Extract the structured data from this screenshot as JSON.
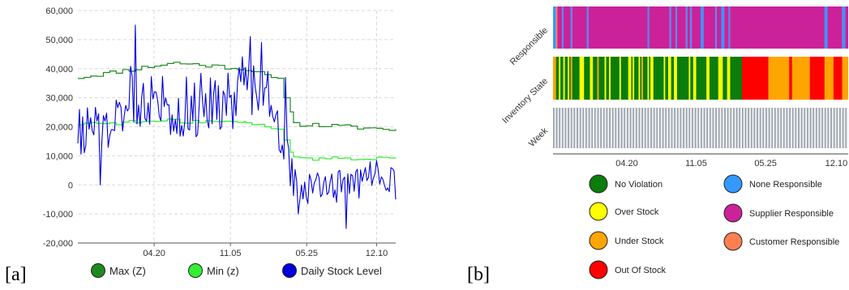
{
  "panel_labels": {
    "a": "[a]",
    "b": "[b]"
  },
  "chart_data": [
    {
      "type": "line",
      "title": "",
      "xlabel": "",
      "ylabel": "",
      "ylim": [
        -20000,
        60000
      ],
      "y_ticks": [
        "60,000",
        "50,000",
        "40,000",
        "30,000",
        "20,000",
        "10,000",
        "0",
        "-10,000",
        "-20,000"
      ],
      "x_ticks": [
        "04.20",
        "11.05",
        "05.25",
        "12.10"
      ],
      "grid": true,
      "legend_position": "bottom",
      "n_points": 200,
      "series": [
        {
          "name": "Max (Z)",
          "color": "#1e8a1e",
          "step": true,
          "segments": [
            {
              "from": 0,
              "to": 60,
              "start": 37000,
              "end": 42000
            },
            {
              "from": 60,
              "to": 105,
              "start": 42000,
              "end": 40000
            },
            {
              "from": 105,
              "to": 125,
              "start": 40000,
              "end": 36000
            },
            {
              "from": 125,
              "to": 135,
              "start": 36000,
              "end": 24000
            },
            {
              "from": 135,
              "to": 200,
              "start": 21000,
              "end": 19000
            }
          ]
        },
        {
          "name": "Min (z)",
          "color": "#33ee33",
          "step": true,
          "segments": [
            {
              "from": 0,
              "to": 60,
              "start": 21000,
              "end": 22000
            },
            {
              "from": 60,
              "to": 105,
              "start": 22000,
              "end": 21500
            },
            {
              "from": 105,
              "to": 125,
              "start": 21500,
              "end": 19000
            },
            {
              "from": 125,
              "to": 135,
              "start": 19000,
              "end": 11000
            },
            {
              "from": 135,
              "to": 200,
              "start": 9000,
              "end": 9500
            }
          ]
        },
        {
          "name": "Daily Stock Level",
          "color": "#0000dd",
          "peaks": [
            {
              "at": 36,
              "value": 55000
            },
            {
              "at": 108,
              "value": 51000
            },
            {
              "at": 115,
              "value": 49000
            },
            {
              "at": 130,
              "value": 37000
            }
          ],
          "troughs": [
            {
              "at": 14,
              "value": 0
            },
            {
              "at": 138,
              "value": -10000
            },
            {
              "at": 168,
              "value": -15000
            },
            {
              "at": 200,
              "value": -5000
            }
          ],
          "segments": [
            {
              "from": 0,
              "to": 30,
              "start": 18000,
              "end": 22000,
              "noise": 8000
            },
            {
              "from": 30,
              "to": 60,
              "start": 32000,
              "end": 28000,
              "noise": 11000
            },
            {
              "from": 60,
              "to": 100,
              "start": 26000,
              "end": 30000,
              "noise": 11000
            },
            {
              "from": 100,
              "to": 125,
              "start": 36000,
              "end": 30000,
              "noise": 10000
            },
            {
              "from": 125,
              "to": 140,
              "start": 20000,
              "end": -4000,
              "noise": 7000
            },
            {
              "from": 140,
              "to": 180,
              "start": -2000,
              "end": 1000,
              "noise": 6000
            },
            {
              "from": 180,
              "to": 200,
              "start": 5000,
              "end": 2000,
              "noise": 5000
            }
          ]
        }
      ],
      "legend": [
        {
          "label": "Max (Z)",
          "color": "#1e8a1e"
        },
        {
          "label": "Min (z)",
          "color": "#33ee33"
        },
        {
          "label": "Daily Stock Level",
          "color": "#0000dd"
        }
      ]
    },
    {
      "type": "heatmap",
      "title": "",
      "rows": [
        "Responsible",
        "Inventory State",
        "Week"
      ],
      "x_ticks": [
        "04.20",
        "11.05",
        "05.25",
        "12.10"
      ],
      "n_columns": 200,
      "row_data": {
        "Responsible": {
          "default": "Supplier Responsible",
          "runs": [
            {
              "from": 0,
              "to": 2,
              "state": "None Responsible"
            },
            {
              "from": 2,
              "to": 3,
              "state": "Customer Responsible"
            },
            {
              "from": 6,
              "to": 7,
              "state": "None Responsible"
            },
            {
              "from": 12,
              "to": 13,
              "state": "None Responsible"
            },
            {
              "from": 23,
              "to": 24,
              "state": "None Responsible"
            },
            {
              "from": 64,
              "to": 65,
              "state": "None Responsible"
            },
            {
              "from": 79,
              "to": 80,
              "state": "None Responsible"
            },
            {
              "from": 83,
              "to": 84,
              "state": "None Responsible"
            },
            {
              "from": 90,
              "to": 91,
              "state": "None Responsible"
            },
            {
              "from": 93,
              "to": 94,
              "state": "None Responsible"
            },
            {
              "from": 100,
              "to": 102,
              "state": "None Responsible"
            },
            {
              "from": 110,
              "to": 111,
              "state": "None Responsible"
            },
            {
              "from": 114,
              "to": 116,
              "state": "None Responsible"
            },
            {
              "from": 119,
              "to": 120,
              "state": "None Responsible"
            },
            {
              "from": 184,
              "to": 186,
              "state": "None Responsible"
            },
            {
              "from": 196,
              "to": 198,
              "state": "None Responsible"
            }
          ]
        },
        "Inventory State": {
          "default": "No Violation",
          "runs": [
            {
              "from": 0,
              "to": 2,
              "state": "Under Stock"
            },
            {
              "from": 4,
              "to": 5,
              "state": "Over Stock"
            },
            {
              "from": 7,
              "to": 8,
              "state": "Over Stock"
            },
            {
              "from": 12,
              "to": 13,
              "state": "Under Stock"
            },
            {
              "from": 18,
              "to": 20,
              "state": "Over Stock"
            },
            {
              "from": 25,
              "to": 27,
              "state": "Over Stock"
            },
            {
              "from": 30,
              "to": 31,
              "state": "Under Stock"
            },
            {
              "from": 38,
              "to": 39,
              "state": "Over Stock"
            },
            {
              "from": 45,
              "to": 46,
              "state": "Over Stock"
            },
            {
              "from": 52,
              "to": 53,
              "state": "Over Stock"
            },
            {
              "from": 60,
              "to": 61,
              "state": "Under Stock"
            },
            {
              "from": 66,
              "to": 68,
              "state": "Over Stock"
            },
            {
              "from": 75,
              "to": 76,
              "state": "Over Stock"
            },
            {
              "from": 82,
              "to": 84,
              "state": "Over Stock"
            },
            {
              "from": 96,
              "to": 97,
              "state": "Over Stock"
            },
            {
              "from": 104,
              "to": 106,
              "state": "Over Stock"
            },
            {
              "from": 112,
              "to": 114,
              "state": "Over Stock"
            },
            {
              "from": 118,
              "to": 120,
              "state": "Over Stock"
            },
            {
              "from": 128,
              "to": 146,
              "state": "Out Of Stock"
            },
            {
              "from": 146,
              "to": 160,
              "state": "Under Stock"
            },
            {
              "from": 160,
              "to": 162,
              "state": "Out Of Stock"
            },
            {
              "from": 162,
              "to": 174,
              "state": "Under Stock"
            },
            {
              "from": 174,
              "to": 184,
              "state": "Out Of Stock"
            },
            {
              "from": 184,
              "to": 190,
              "state": "Under Stock"
            },
            {
              "from": 190,
              "to": 196,
              "state": "Out Of Stock"
            },
            {
              "from": 196,
              "to": 200,
              "state": "Under Stock"
            }
          ]
        },
        "Week": {
          "pattern": "alternating",
          "colors": [
            "#9aa3ae",
            "#f2f2f2"
          ]
        }
      },
      "legend": [
        {
          "label": "No Violation",
          "color": "#0a7d0a"
        },
        {
          "label": "None Responsible",
          "color": "#3399ff"
        },
        {
          "label": "Over Stock",
          "color": "#ffff00"
        },
        {
          "label": "Supplier Responsible",
          "color": "#cc2299"
        },
        {
          "label": "Under Stock",
          "color": "#ffa500"
        },
        {
          "label": "Customer Responsible",
          "color": "#ff7f50"
        },
        {
          "label": "Out Of Stock",
          "color": "#ff0000"
        }
      ]
    }
  ]
}
